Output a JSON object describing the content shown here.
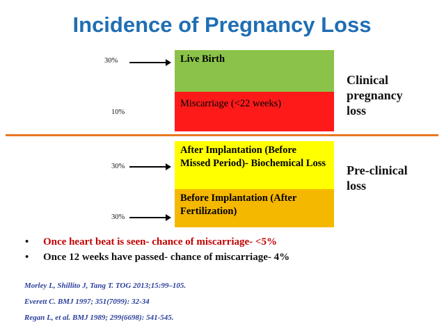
{
  "title": "Incidence of Pregnancy Loss",
  "blocks": [
    {
      "label": "Live Birth",
      "color": "#8bc34a"
    },
    {
      "label": "Miscarriage (<22 weeks)",
      "color": "#ff1a1a"
    },
    {
      "label": "After Implantation (Before Missed Period)- Biochemical Loss",
      "color": "#ffff00"
    },
    {
      "label": "Before Implantation (After Fertilization)",
      "color": "#f5b800"
    }
  ],
  "percentages": [
    "30%",
    "10%",
    "30%",
    "30%"
  ],
  "side_labels": {
    "clinical": "Clinical pregnancy loss",
    "preclinical": "Pre-clinical loss"
  },
  "bullets": [
    {
      "text": "Once heart beat is seen- chance of miscarriage- <5%",
      "color": "#c00000"
    },
    {
      "text": "Once 12 weeks have passed- chance of miscarriage- 4%",
      "color": "#111111"
    }
  ],
  "references": [
    "Morley L, Shillito J, Tang T. TOG 2013;15:99–105.",
    "Everett C. BMJ 1997; 351(7099): 32-34",
    " Regan L, et al. BMJ 1989; 299(6698): 541-545."
  ]
}
